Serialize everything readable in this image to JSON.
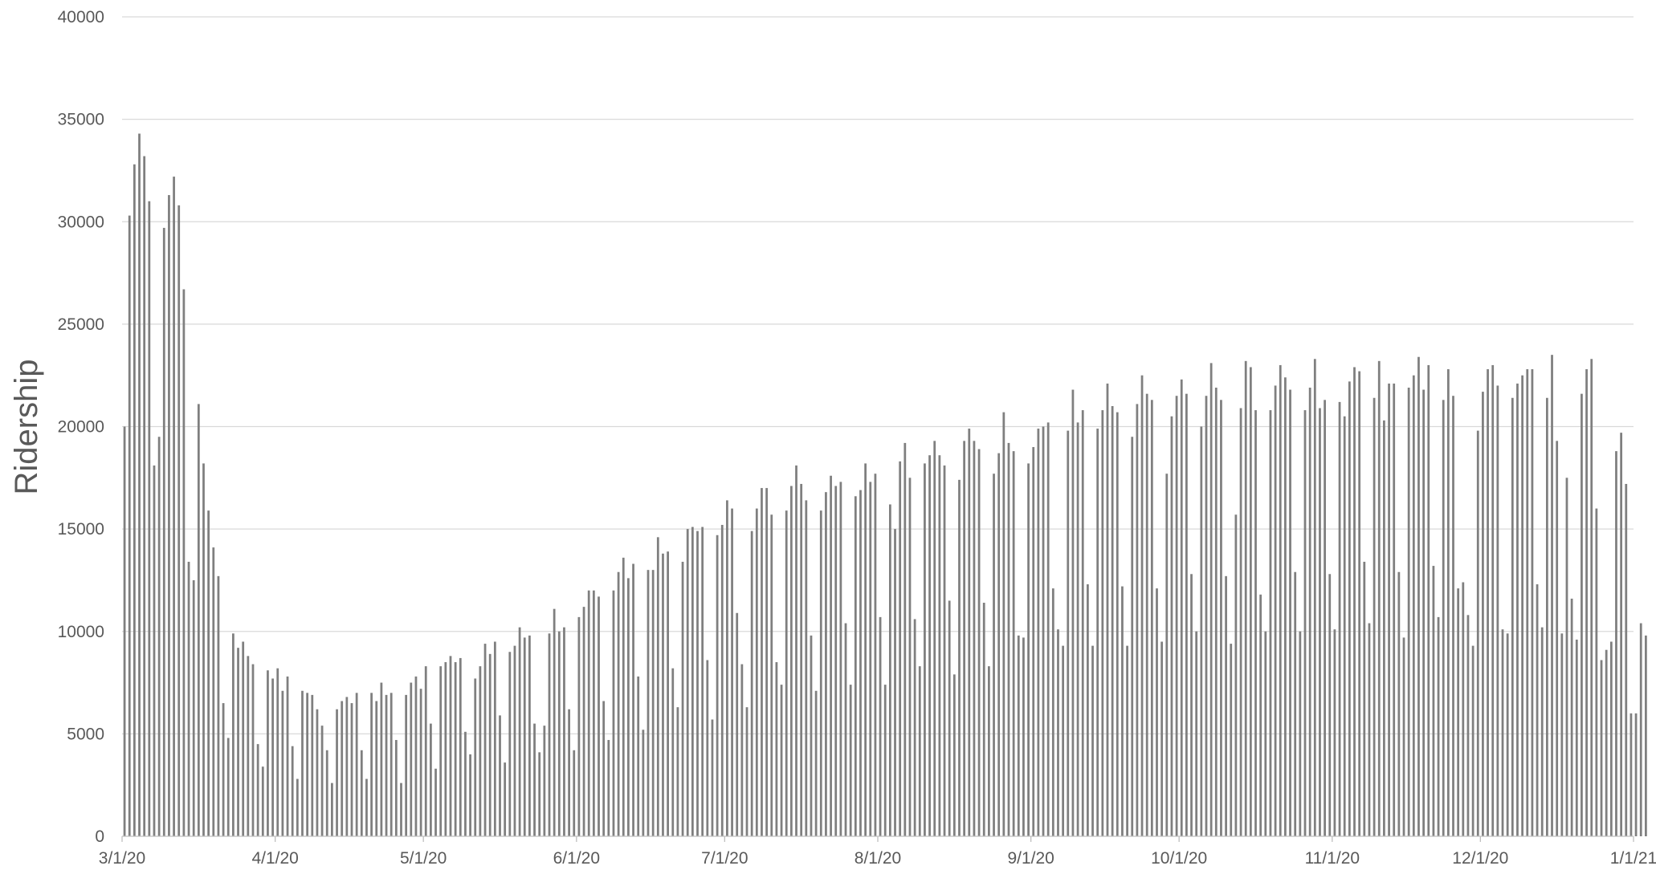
{
  "chart_data": {
    "type": "bar",
    "title": "",
    "xlabel": "",
    "ylabel": "Ridership",
    "ylim": [
      0,
      40000
    ],
    "yticks": [
      0,
      5000,
      10000,
      15000,
      20000,
      25000,
      30000,
      35000,
      40000
    ],
    "xlim": [
      "3/1/20",
      "1/1/21"
    ],
    "xticks": [
      "3/1/20",
      "4/1/20",
      "5/1/20",
      "6/1/20",
      "7/1/20",
      "8/1/20",
      "9/1/20",
      "10/1/20",
      "11/1/20",
      "12/1/20",
      "1/1/21"
    ],
    "x_start": "3/1/20",
    "x_end": "1/1/21",
    "grid": true,
    "legend": "none",
    "bar_color": "#7f7f7f",
    "values": [
      20000,
      30300,
      32800,
      34300,
      33200,
      31000,
      18100,
      19500,
      29700,
      31300,
      32200,
      30800,
      26700,
      13400,
      12500,
      21100,
      18200,
      15900,
      14100,
      12700,
      6500,
      4800,
      9900,
      9200,
      9500,
      8800,
      8400,
      4500,
      3400,
      8100,
      7700,
      8200,
      7100,
      7800,
      4400,
      2800,
      7100,
      7000,
      6900,
      6200,
      5400,
      4200,
      2600,
      6200,
      6600,
      6800,
      6500,
      7000,
      4200,
      2800,
      7000,
      6600,
      7500,
      6900,
      7000,
      4700,
      2600,
      6900,
      7500,
      7800,
      7200,
      8300,
      5500,
      3300,
      8300,
      8500,
      8800,
      8500,
      8700,
      5100,
      4000,
      7700,
      8300,
      9400,
      8900,
      9500,
      5900,
      3600,
      9000,
      9300,
      10200,
      9700,
      9800,
      5500,
      4100,
      5400,
      9900,
      11100,
      10000,
      10200,
      6200,
      4200,
      10700,
      11200,
      12000,
      12000,
      11700,
      6600,
      4700,
      12000,
      12900,
      13600,
      12600,
      13300,
      7800,
      5200,
      13000,
      13000,
      14600,
      13800,
      13900,
      8200,
      6300,
      13400,
      15000,
      15100,
      14900,
      15100,
      8600,
      5700,
      14700,
      15200,
      16400,
      16000,
      10900,
      8400,
      6300,
      14900,
      16000,
      17000,
      17000,
      15700,
      8500,
      7400,
      15900,
      17100,
      18100,
      17200,
      16400,
      9800,
      7100,
      15900,
      16800,
      17600,
      17100,
      17300,
      10400,
      7400,
      16600,
      16900,
      18200,
      17300,
      17700,
      10700,
      7400,
      16200,
      15000,
      18300,
      19200,
      17500,
      10600,
      8300,
      18200,
      18600,
      19300,
      18600,
      18100,
      11500,
      7900,
      17400,
      19300,
      19900,
      19300,
      18900,
      11400,
      8300,
      17700,
      18700,
      20700,
      19200,
      18800,
      9800,
      9700,
      18200,
      19000,
      19900,
      20000,
      20200,
      12100,
      10100,
      9300,
      19800,
      21800,
      20200,
      20800,
      12300,
      9300,
      19900,
      20800,
      22100,
      21000,
      20700,
      12200,
      9300,
      19500,
      21100,
      22500,
      21600,
      21300,
      12100,
      9500,
      17700,
      20500,
      21500,
      22300,
      21600,
      12800,
      10000,
      20000,
      21500,
      23100,
      21900,
      21300,
      12700,
      9400,
      15700,
      20900,
      23200,
      22900,
      20800,
      11800,
      10000,
      20800,
      22000,
      23000,
      22400,
      21800,
      12900,
      10000,
      20800,
      21900,
      23300,
      20900,
      21300,
      12800,
      10100,
      21200,
      20500,
      22200,
      22900,
      22700,
      13400,
      10400,
      21400,
      23200,
      20300,
      22100,
      22100,
      12900,
      9700,
      21900,
      22500,
      23400,
      21800,
      23000,
      13200,
      10700,
      21300,
      22800,
      21500,
      12100,
      12400,
      10800,
      9300,
      19800,
      21700,
      22800,
      23000,
      22000,
      10100,
      9900,
      21400,
      22100,
      22500,
      22800,
      22800,
      12300,
      10200,
      21400,
      23500,
      19300,
      9900,
      17500,
      11600,
      9600,
      21600,
      22800,
      23300,
      16000,
      8600,
      9100,
      9500,
      18800,
      19700,
      17200,
      6000,
      6000,
      10400,
      9800
    ]
  }
}
